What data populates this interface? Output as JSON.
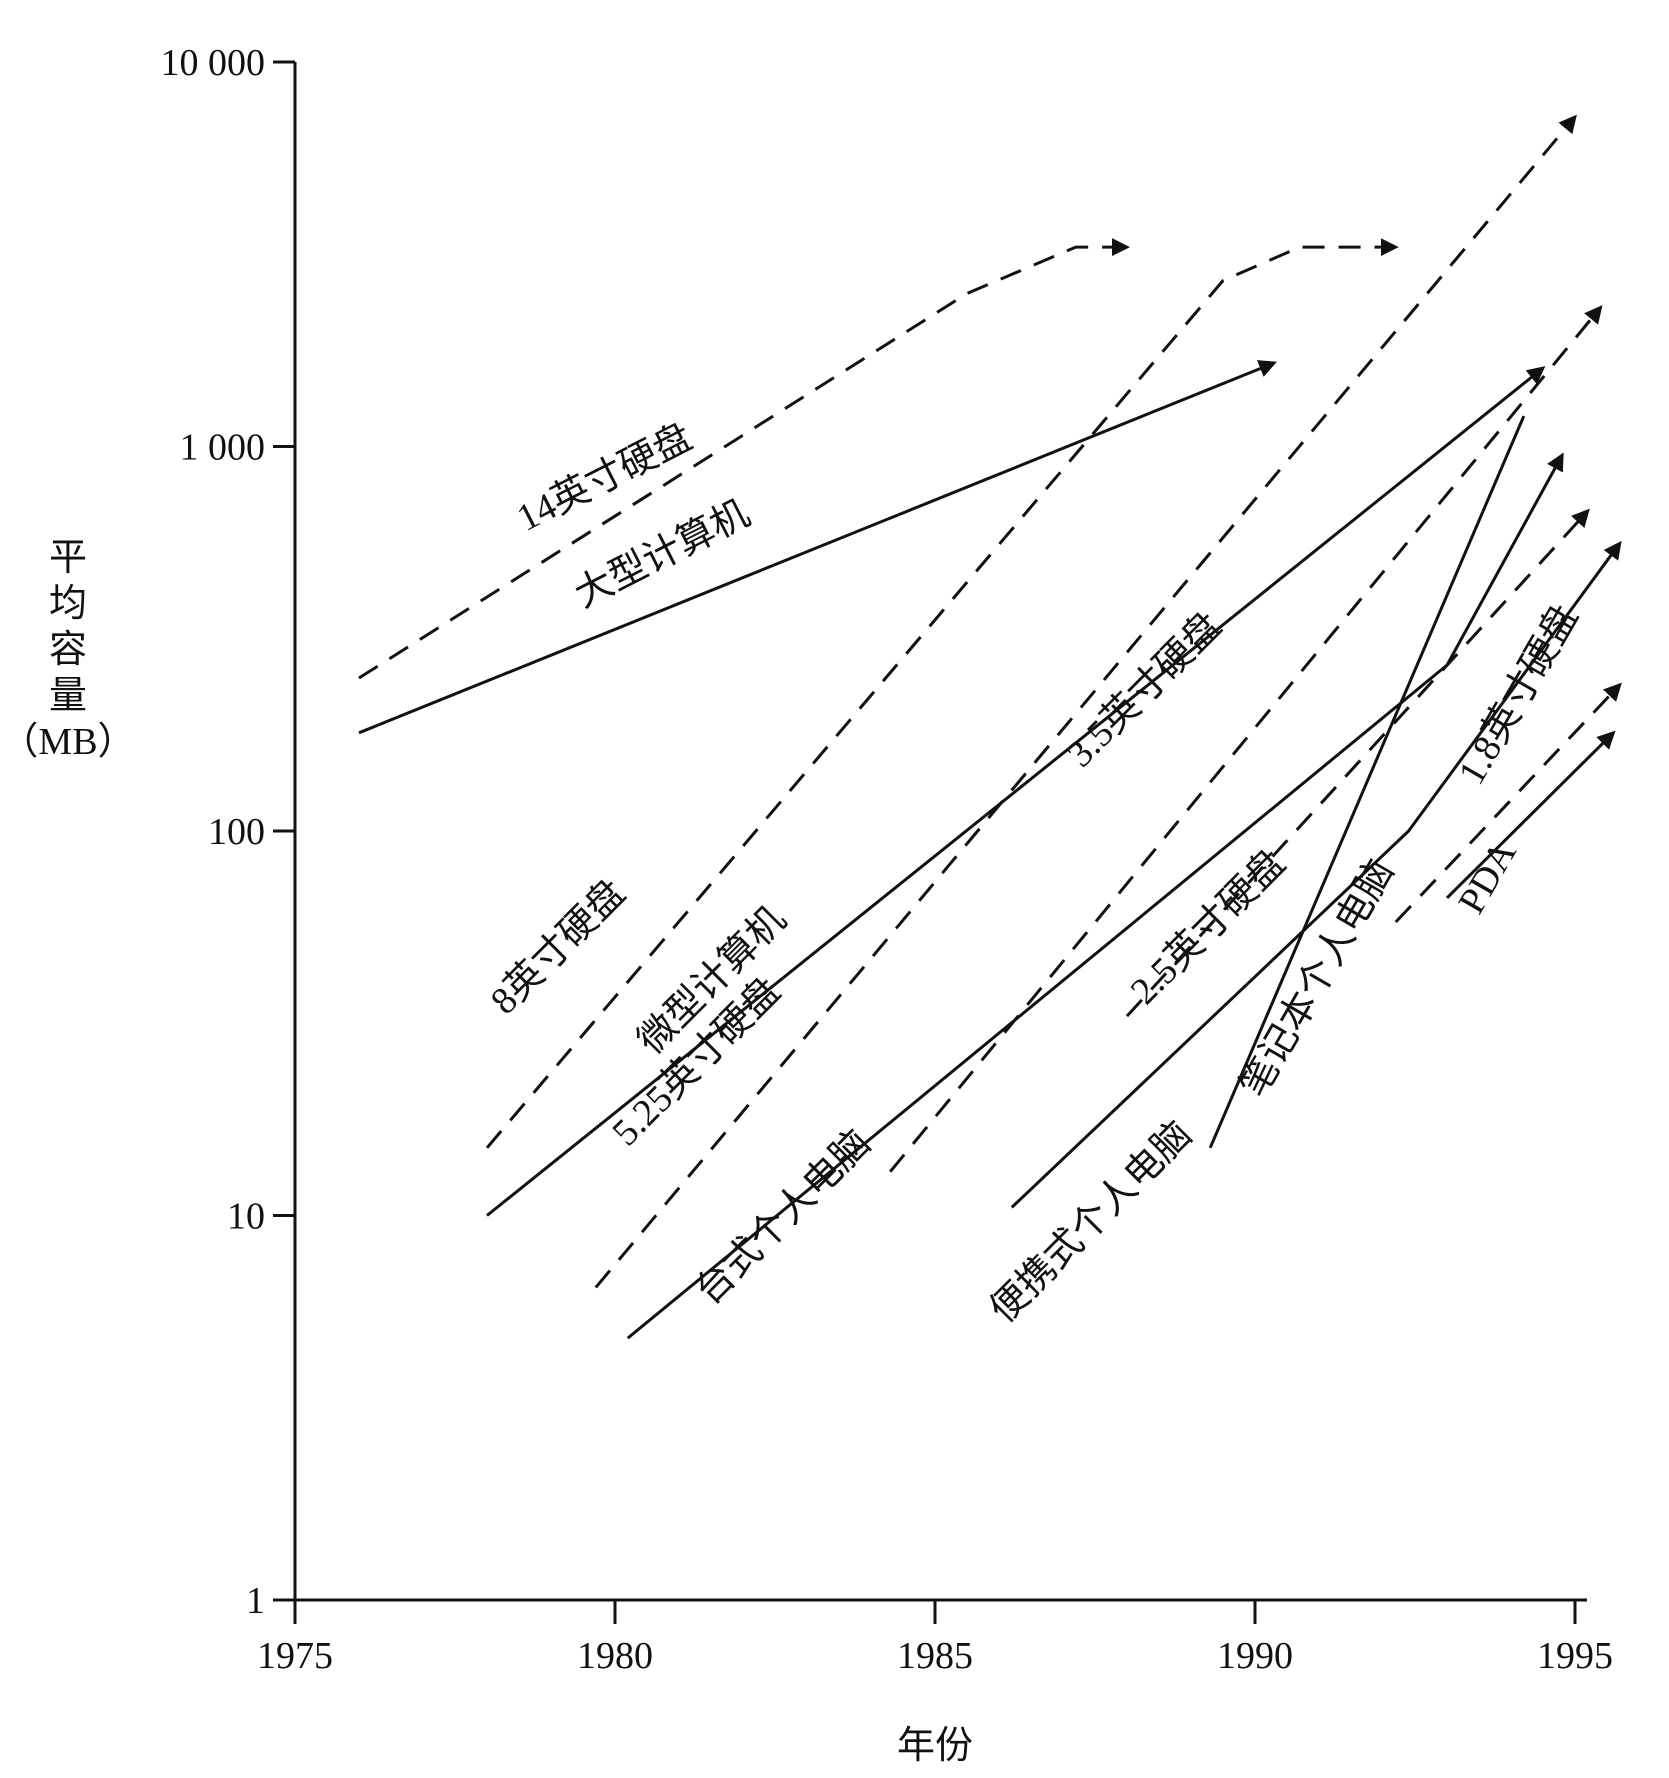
{
  "chart_data": {
    "type": "line",
    "title": "",
    "xlabel": "年份",
    "ylabel": "平均容量（MB）",
    "ylabel_chars": [
      "平",
      "均",
      "容",
      "量",
      "（MB）"
    ],
    "xlim": [
      1975,
      1995
    ],
    "ylim": [
      1,
      10000
    ],
    "y_scale": "log",
    "x_ticks": [
      1975,
      1980,
      1985,
      1990,
      1995
    ],
    "x_tick_labels": [
      "1975",
      "1980",
      "1985",
      "1990",
      "1995"
    ],
    "y_ticks": [
      1,
      10,
      100,
      1000,
      10000
    ],
    "y_tick_labels": [
      "1",
      "10",
      "100",
      "1 000",
      "10 000"
    ],
    "grid": false,
    "series": [
      {
        "name": "14英寸硬盘",
        "dash": true,
        "arrow": true,
        "points": [
          [
            1976,
            250
          ],
          [
            1985.5,
            2500
          ],
          [
            1987.2,
            3300
          ],
          [
            1988,
            3300
          ]
        ]
      },
      {
        "name": "大型计算机",
        "dash": false,
        "arrow": true,
        "points": [
          [
            1976,
            180
          ],
          [
            1990.3,
            1650
          ]
        ]
      },
      {
        "name": "8英寸硬盘",
        "dash": true,
        "arrow": true,
        "points": [
          [
            1978,
            15
          ],
          [
            1989.5,
            2700
          ],
          [
            1990.7,
            3300
          ],
          [
            1992.2,
            3300
          ]
        ]
      },
      {
        "name": "微型计算机",
        "dash": false,
        "arrow": true,
        "points": [
          [
            1978,
            10
          ],
          [
            1994.5,
            1600
          ]
        ]
      },
      {
        "name": "5.25英寸硬盘",
        "dash": true,
        "arrow": true,
        "points": [
          [
            1979.7,
            6.5
          ],
          [
            1995,
            7200
          ]
        ]
      },
      {
        "name": "3.5英寸硬盘",
        "dash": true,
        "arrow": true,
        "points": [
          [
            1984.3,
            13
          ],
          [
            1995.4,
            2300
          ]
        ]
      },
      {
        "name": "台式个人电脑",
        "dash": false,
        "arrow": true,
        "points": [
          [
            1980.2,
            4.8
          ],
          [
            1993,
            270
          ],
          [
            1994.8,
            950
          ]
        ]
      },
      {
        "name": "2.5英寸硬盘",
        "dash": true,
        "arrow": true,
        "points": [
          [
            1988,
            33
          ],
          [
            1995.2,
            680
          ]
        ]
      },
      {
        "name": "便携式个人电脑",
        "dash": false,
        "arrow": true,
        "points": [
          [
            1986.2,
            10.5
          ],
          [
            1992.4,
            100
          ],
          [
            1995.7,
            560
          ]
        ]
      },
      {
        "name": "1.8英寸硬盘",
        "dash": true,
        "arrow": true,
        "points": [
          [
            1992.2,
            58
          ],
          [
            1995.7,
            240
          ]
        ]
      },
      {
        "name": "笔记本个人电脑",
        "dash": false,
        "arrow": false,
        "points": [
          [
            1989.3,
            15
          ],
          [
            1994.2,
            1200
          ]
        ]
      },
      {
        "name": "PDA",
        "dash": false,
        "arrow": true,
        "points": [
          [
            1993,
            67
          ],
          [
            1995.6,
            180
          ]
        ]
      }
    ],
    "annotations": [
      {
        "text": "14英寸硬盘",
        "x": 1978.6,
        "y": 600,
        "angle": -27
      },
      {
        "text": "大型计算机",
        "x": 1979.5,
        "y": 380,
        "angle": -27
      },
      {
        "text": "8英寸硬盘",
        "x": 1978.3,
        "y": 33,
        "angle": -45
      },
      {
        "text": "微型计算机",
        "x": 1980.6,
        "y": 26,
        "angle": -45
      },
      {
        "text": "5.25英寸硬盘",
        "x": 1980.2,
        "y": 15,
        "angle": -45
      },
      {
        "text": "3.5英寸硬盘",
        "x": 1987.3,
        "y": 145,
        "angle": -45
      },
      {
        "text": "台式个人电脑",
        "x": 1981.5,
        "y": 5.8,
        "angle": -45
      },
      {
        "text": "2.5英寸硬盘",
        "x": 1988.3,
        "y": 35,
        "angle": -45
      },
      {
        "text": "便携式个人电脑",
        "x": 1986.1,
        "y": 5.2,
        "angle": -45
      },
      {
        "text": "笔记本个人电脑",
        "x": 1990.1,
        "y": 20,
        "angle": -60
      },
      {
        "text": "1.8英寸硬盘",
        "x": 1993.5,
        "y": 130,
        "angle": -60
      },
      {
        "text": "PDA",
        "x": 1993.5,
        "y": 60,
        "angle": -60
      }
    ]
  }
}
